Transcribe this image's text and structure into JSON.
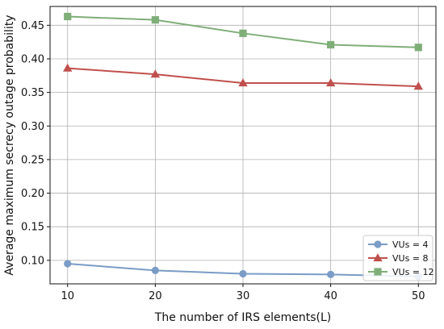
{
  "chart_data": {
    "type": "line",
    "title": "",
    "xlabel": "The number of IRS elements(L)",
    "ylabel": "Average maximum secrecy outage probability",
    "x": [
      10,
      20,
      30,
      40,
      50
    ],
    "xlim": [
      8,
      52
    ],
    "ylim": [
      0.065,
      0.478
    ],
    "xticks": [
      10,
      20,
      30,
      40,
      50
    ],
    "yticks": [
      0.1,
      0.15,
      0.2,
      0.25,
      0.3,
      0.35,
      0.4,
      0.45
    ],
    "grid": true,
    "legend": "bottom-right",
    "series": [
      {
        "name": "VUs = 4",
        "values": [
          0.095,
          0.085,
          0.08,
          0.079,
          0.076
        ],
        "color": "#7a9cc6",
        "marker": "circle"
      },
      {
        "name": "VUs = 8",
        "values": [
          0.386,
          0.377,
          0.364,
          0.364,
          0.359
        ],
        "color": "#c0504d",
        "marker": "triangle"
      },
      {
        "name": "VUs = 12",
        "values": [
          0.463,
          0.458,
          0.438,
          0.421,
          0.417
        ],
        "color": "#7fae78",
        "marker": "square"
      }
    ]
  }
}
